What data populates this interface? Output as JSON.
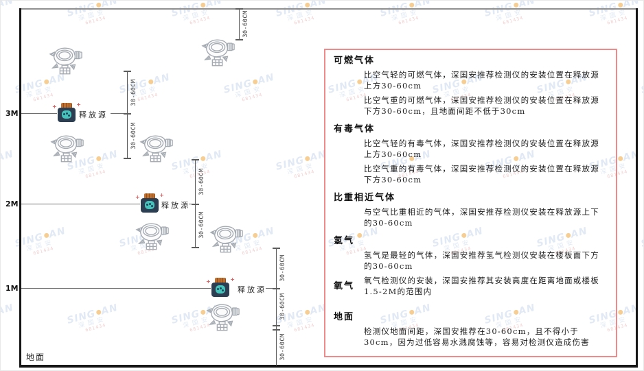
{
  "watermark": {
    "brand_left": "SING",
    "brand_right": "AN",
    "cn": "深国安",
    "code": "681434"
  },
  "diagram": {
    "height_labels": [
      "3M",
      "2M",
      "1M"
    ],
    "ground_label": "地面",
    "release_source_label": "释放源",
    "dim_label": "30-60CM",
    "icons": {
      "gas_detector": "gas-detector-line-art",
      "release_source": "gas-canister"
    }
  },
  "panel": {
    "sections": {
      "s1": {
        "heading": "可燃气体",
        "p1": "比空气轻的可燃气体，深国安推荐检测仪的安装位置在释放源上方30-60cm",
        "p2": "比空气重的可燃气体，深国安推荐检测仪的安装位置在释放源下方30-60cm，且地面间距不低于30cm"
      },
      "s2": {
        "heading": "有毒气体",
        "p1": "比空气轻的有毒气体，深国安推荐检测仪的安装位置在释放源上方30-60cm",
        "p2": "比空气重的有毒气体，深国安推荐检测仪的安装位置在释放源下方30-60cm"
      },
      "s3": {
        "heading": "比重相近气体",
        "p1": "与空气比重相近的气体，深国安推荐检测仪安装在释放源上下的30-60cm"
      },
      "s4": {
        "heading": "氢气",
        "p1": "氢气是最轻的气体，深国安推荐氢气检测仪安装在楼板面下方的30-60cm"
      },
      "s5": {
        "heading": "氧气",
        "p1": "氧气检测仪的安装，深国安推荐其安装高度在距离地面或楼板1.5-2M的范围内"
      },
      "s6": {
        "heading": "地面",
        "p1": "检测仪地面间距，深国安推荐在30-60cm，且不得小于30cm，因为过低容易水溅腐蚀等，容易对检测仪造成伤害"
      }
    }
  },
  "colors": {
    "panel_border": "#F08A8A",
    "watermark_blue": "#C9D8EC",
    "watermark_dot_orange": "#F0A63C",
    "source_body_navy": "#2B3E52",
    "source_gas_teal": "#45C4BC",
    "source_cap_orange": "#BF7030",
    "line_gray": "#5C5C5C",
    "wall_black": "#161616"
  }
}
